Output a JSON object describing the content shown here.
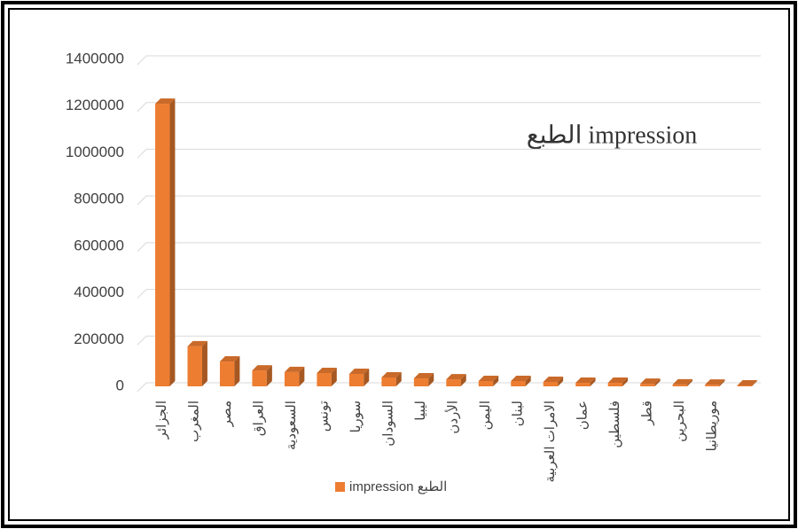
{
  "chart_data": {
    "type": "bar3d",
    "title": "الطبع impression",
    "categories": [
      "الجزائر",
      "المغرب",
      "مصر",
      "العراق",
      "السعودية",
      "تونس",
      "سوريا",
      "السودان",
      "ليبيا",
      "الأردن",
      "اليمن",
      "لبنان",
      "الامرات العربية",
      "عمان",
      "فلسطين",
      "قطر",
      "البحرين",
      "موريطانيا",
      null
    ],
    "series": [
      {
        "name": "الطبع impression",
        "color": "#ed7d31",
        "values": [
          1210000,
          171000,
          106000,
          68000,
          61000,
          57000,
          53000,
          38000,
          34000,
          30000,
          23000,
          23000,
          19000,
          15000,
          15000,
          11000,
          8000,
          7000,
          4000
        ]
      }
    ],
    "ylim": [
      0,
      1400000
    ],
    "yticks": [
      0,
      200000,
      400000,
      600000,
      800000,
      1000000,
      1200000,
      1400000
    ],
    "grid": true,
    "legend": "bottom"
  }
}
